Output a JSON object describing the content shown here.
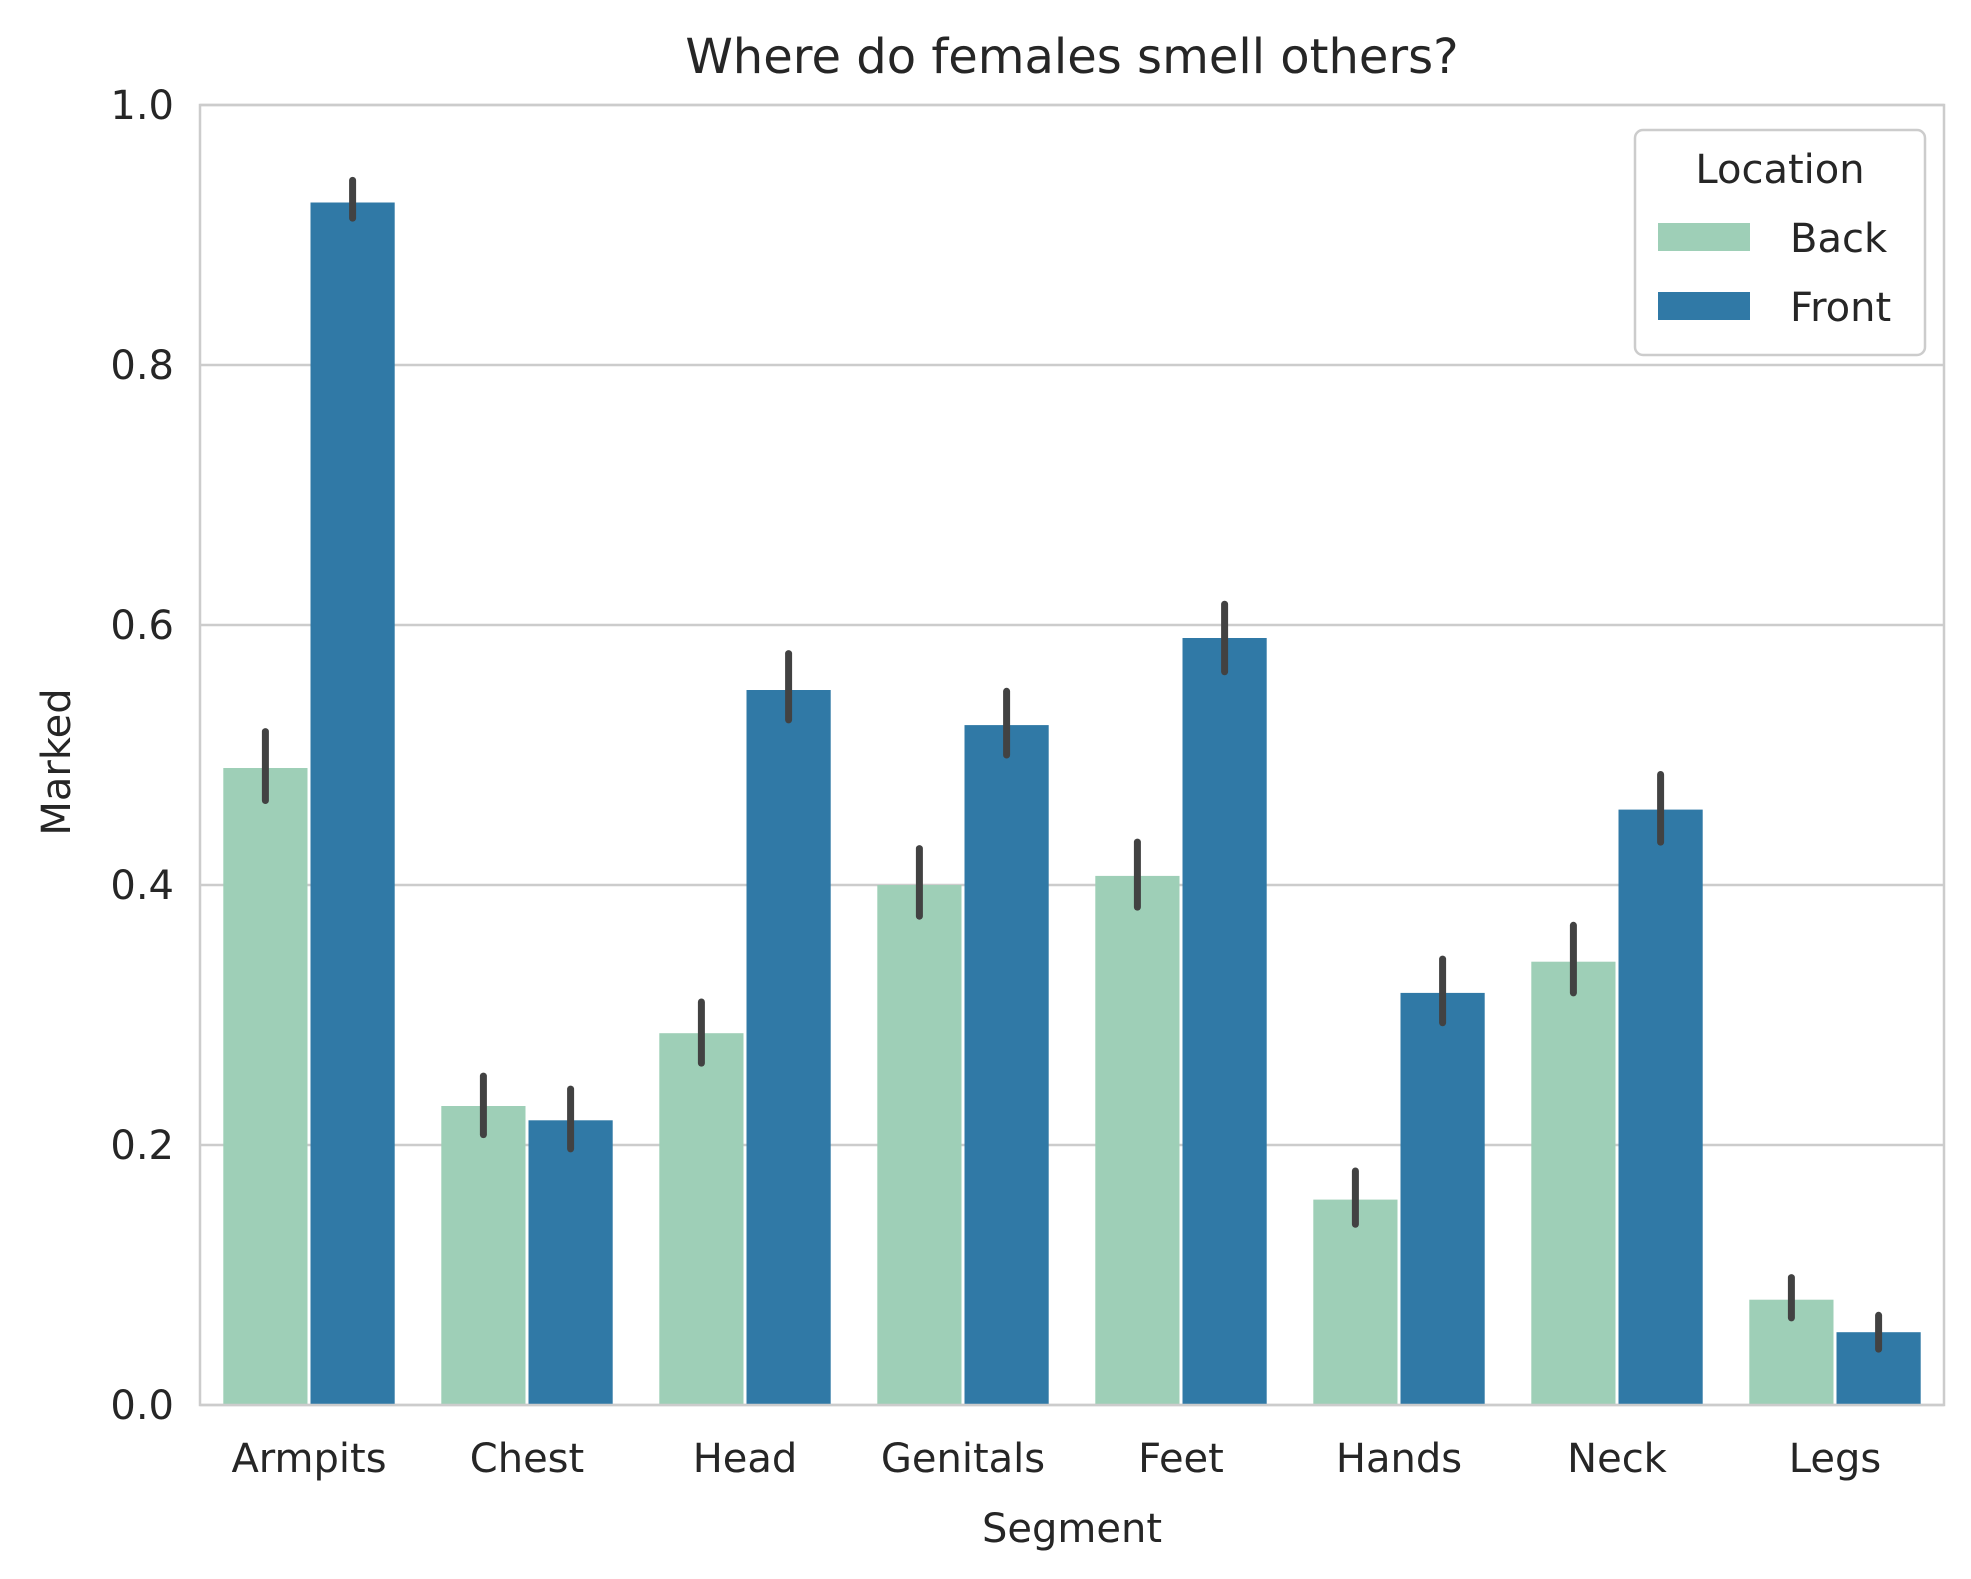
{
  "chart_data": {
    "type": "bar",
    "title": "Where do females smell others?",
    "xlabel": "Segment",
    "ylabel": "Marked",
    "ylim": [
      0,
      1.0
    ],
    "yticks": [
      "0.0",
      "0.2",
      "0.4",
      "0.6",
      "0.8",
      "1.0"
    ],
    "grid": "horizontal",
    "categories": [
      "Armpits",
      "Chest",
      "Head",
      "Genitals",
      "Feet",
      "Hands",
      "Neck",
      "Legs"
    ],
    "legend": {
      "title": "Location",
      "position": "top-right"
    },
    "series": [
      {
        "name": "Back",
        "color": "#9ecfb7",
        "values": [
          0.49,
          0.23,
          0.286,
          0.4,
          0.407,
          0.158,
          0.341,
          0.081
        ],
        "err_low": [
          0.465,
          0.208,
          0.263,
          0.376,
          0.383,
          0.139,
          0.317,
          0.067
        ],
        "err_high": [
          0.518,
          0.253,
          0.31,
          0.428,
          0.433,
          0.18,
          0.369,
          0.098
        ]
      },
      {
        "name": "Front",
        "color": "#3079a6",
        "values": [
          0.925,
          0.219,
          0.55,
          0.523,
          0.59,
          0.317,
          0.458,
          0.056
        ],
        "err_low": [
          0.913,
          0.197,
          0.527,
          0.5,
          0.564,
          0.294,
          0.433,
          0.043
        ],
        "err_high": [
          0.942,
          0.243,
          0.578,
          0.549,
          0.616,
          0.343,
          0.485,
          0.069
        ]
      }
    ]
  }
}
